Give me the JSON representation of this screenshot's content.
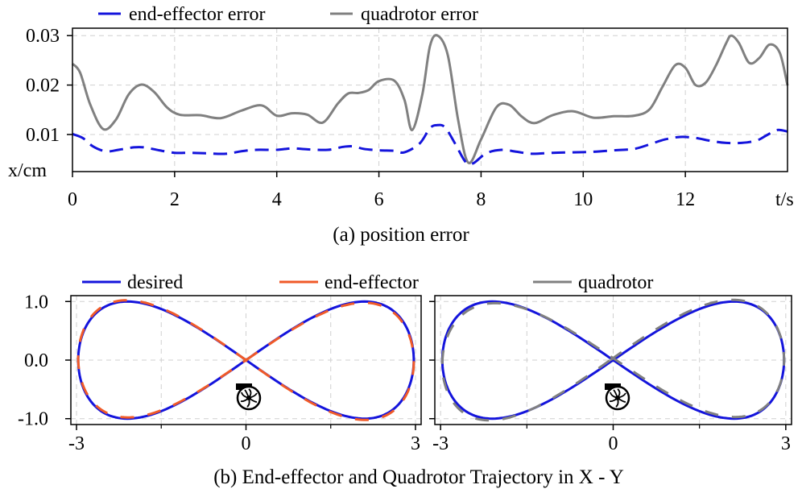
{
  "chart_data": [
    {
      "type": "line",
      "caption": "(a) position error",
      "xlabel": "t/s",
      "ylabel": "x/cm",
      "xlim": [
        0,
        14
      ],
      "ylim": [
        0.0025,
        0.0315
      ],
      "xticks": [
        0,
        2,
        4,
        6,
        8,
        10,
        12
      ],
      "yticks": [
        0.01,
        0.02,
        0.03
      ],
      "grid": true,
      "legend_position": "top-left, above plot",
      "series": [
        {
          "name": "end-effector error",
          "color": "#1414dc",
          "style": "dashed",
          "x": [
            0,
            0.2,
            0.4,
            0.65,
            0.9,
            1.2,
            1.4,
            1.7,
            2.0,
            2.3,
            2.6,
            3.0,
            3.3,
            3.6,
            4.0,
            4.3,
            4.6,
            5.0,
            5.3,
            5.5,
            5.7,
            6.0,
            6.3,
            6.5,
            6.8,
            7.0,
            7.15,
            7.3,
            7.5,
            7.7,
            7.85,
            8.1,
            8.4,
            8.7,
            9.0,
            9.4,
            9.8,
            10.2,
            10.6,
            11.0,
            11.3,
            11.6,
            11.9,
            12.2,
            12.5,
            12.8,
            13.1,
            13.4,
            13.6,
            13.8,
            14.0
          ],
          "values": [
            0.0101,
            0.0093,
            0.0076,
            0.0066,
            0.0069,
            0.0074,
            0.0074,
            0.0068,
            0.0063,
            0.0063,
            0.0062,
            0.0061,
            0.0066,
            0.0069,
            0.0069,
            0.0072,
            0.007,
            0.0069,
            0.0075,
            0.0076,
            0.0071,
            0.0068,
            0.0067,
            0.0064,
            0.0082,
            0.0113,
            0.0119,
            0.0114,
            0.008,
            0.0044,
            0.0042,
            0.0062,
            0.0069,
            0.0065,
            0.0061,
            0.0063,
            0.0064,
            0.0065,
            0.0068,
            0.0071,
            0.008,
            0.009,
            0.0095,
            0.0093,
            0.0087,
            0.0083,
            0.0083,
            0.0088,
            0.0099,
            0.0109,
            0.0106
          ]
        },
        {
          "name": "quadrotor error",
          "color": "#808080",
          "style": "solid",
          "x": [
            0,
            0.15,
            0.35,
            0.6,
            0.85,
            1.1,
            1.35,
            1.6,
            1.85,
            2.1,
            2.5,
            2.9,
            3.3,
            3.7,
            4.0,
            4.3,
            4.6,
            4.9,
            5.2,
            5.4,
            5.6,
            5.8,
            6.0,
            6.3,
            6.5,
            6.65,
            6.85,
            7.0,
            7.15,
            7.35,
            7.55,
            7.75,
            8.0,
            8.3,
            8.55,
            8.8,
            9.05,
            9.4,
            9.8,
            10.2,
            10.6,
            11.0,
            11.3,
            11.55,
            11.8,
            12.0,
            12.2,
            12.4,
            12.6,
            12.8,
            12.9,
            13.05,
            13.25,
            13.45,
            13.65,
            13.85,
            14.0
          ],
          "values": [
            0.0243,
            0.0225,
            0.016,
            0.0111,
            0.013,
            0.0181,
            0.0201,
            0.0186,
            0.0155,
            0.014,
            0.0139,
            0.0133,
            0.0148,
            0.0159,
            0.0138,
            0.0143,
            0.014,
            0.0124,
            0.0163,
            0.0183,
            0.0184,
            0.019,
            0.0208,
            0.0209,
            0.017,
            0.0109,
            0.0181,
            0.0279,
            0.03,
            0.026,
            0.013,
            0.0043,
            0.009,
            0.0155,
            0.016,
            0.0136,
            0.0123,
            0.0139,
            0.0147,
            0.0134,
            0.0137,
            0.0138,
            0.0151,
            0.0196,
            0.024,
            0.0235,
            0.02,
            0.0205,
            0.024,
            0.0285,
            0.03,
            0.0285,
            0.0245,
            0.0255,
            0.0282,
            0.0265,
            0.0199
          ]
        }
      ]
    },
    {
      "type": "line",
      "caption": "(b) End-effector and Quadrotor Trajectory in X - Y",
      "legend_position": "top, above plots",
      "panels": [
        {
          "xlim": [
            -3.1,
            3.1
          ],
          "ylim": [
            -1.1,
            1.1
          ],
          "xticks": [
            -3,
            0,
            3
          ],
          "yticks": [
            1.0,
            0.0,
            -1.0
          ],
          "ytick_labels": [
            "1.0",
            "0.0",
            "-1.0"
          ],
          "grid": true,
          "series": [
            {
              "name": "desired",
              "color": "#1414dc",
              "style": "solid",
              "curve": "figure-eight x=2.97*sin(t), y=sin(2t)"
            },
            {
              "name": "end-effector",
              "color": "#f05a28",
              "style": "dashed",
              "curve": "figure-eight x=2.97*sin(t), y=sin(2t)"
            }
          ],
          "marker_icon": "quadrotor-fan-icon"
        },
        {
          "xlim": [
            -3.1,
            3.1
          ],
          "ylim": [
            -1.1,
            1.1
          ],
          "xticks": [
            -3,
            0,
            3
          ],
          "grid": true,
          "series": [
            {
              "name": "desired",
              "color": "#1414dc",
              "style": "solid",
              "curve": "figure-eight x=2.97*sin(t), y=sin(2t)"
            },
            {
              "name": "quadrotor",
              "color": "#808080",
              "style": "dashed",
              "curve": "figure-eight x=2.97*sin(t), y=sin(2t)"
            }
          ],
          "marker_icon": "quadrotor-fan-icon"
        }
      ]
    }
  ]
}
